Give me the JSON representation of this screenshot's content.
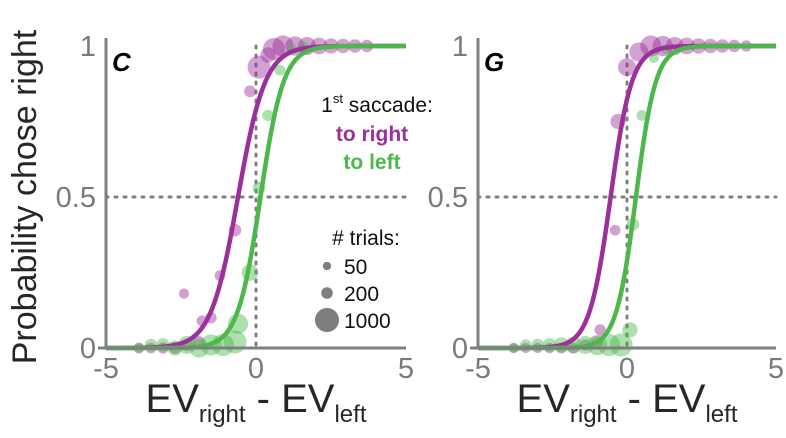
{
  "chart_data": [
    {
      "type": "scatter",
      "panel_label": "C",
      "xlim": [
        -5,
        5
      ],
      "ylim": [
        0,
        1
      ],
      "x_ticks": [
        "-5",
        "0",
        "5"
      ],
      "y_ticks": [
        "0",
        "0.5",
        "1"
      ],
      "reference_lines": {
        "x": 0,
        "y": 0.5,
        "style": "dotted"
      },
      "series": [
        {
          "name": "to right",
          "color": "#9b2f9b",
          "fit": {
            "midpoint": -0.6,
            "slope": 2.2
          },
          "points": [
            {
              "x": -3.9,
              "y": 0.0,
              "trials": 60
            },
            {
              "x": -3.5,
              "y": 0.0,
              "trials": 80
            },
            {
              "x": -3.1,
              "y": 0.0,
              "trials": 100
            },
            {
              "x": -2.7,
              "y": 0.0,
              "trials": 120
            },
            {
              "x": -2.3,
              "y": 0.01,
              "trials": 140
            },
            {
              "x": -2.4,
              "y": 0.18,
              "trials": 60
            },
            {
              "x": -1.9,
              "y": 0.02,
              "trials": 120
            },
            {
              "x": -1.8,
              "y": 0.09,
              "trials": 80
            },
            {
              "x": -1.5,
              "y": 0.1,
              "trials": 100
            },
            {
              "x": -1.2,
              "y": 0.24,
              "trials": 80
            },
            {
              "x": -0.7,
              "y": 0.39,
              "trials": 150
            },
            {
              "x": -0.2,
              "y": 0.85,
              "trials": 120
            },
            {
              "x": 0.1,
              "y": 0.93,
              "trials": 1000
            },
            {
              "x": 0.4,
              "y": 0.97,
              "trials": 300
            },
            {
              "x": 0.6,
              "y": 0.99,
              "trials": 900
            },
            {
              "x": 0.9,
              "y": 1.0,
              "trials": 800
            },
            {
              "x": 1.3,
              "y": 1.0,
              "trials": 600
            },
            {
              "x": 1.7,
              "y": 1.0,
              "trials": 500
            },
            {
              "x": 2.1,
              "y": 1.0,
              "trials": 400
            },
            {
              "x": 2.5,
              "y": 1.0,
              "trials": 300
            },
            {
              "x": 2.9,
              "y": 1.0,
              "trials": 250
            },
            {
              "x": 3.3,
              "y": 1.0,
              "trials": 200
            },
            {
              "x": 3.7,
              "y": 1.0,
              "trials": 150
            }
          ]
        },
        {
          "name": "to left",
          "color": "#4cb84c",
          "fit": {
            "midpoint": 0.15,
            "slope": 2.6
          },
          "points": [
            {
              "x": -3.9,
              "y": 0.0,
              "trials": 80
            },
            {
              "x": -3.5,
              "y": 0.01,
              "trials": 150
            },
            {
              "x": -3.1,
              "y": 0.01,
              "trials": 200
            },
            {
              "x": -2.7,
              "y": 0.0,
              "trials": 300
            },
            {
              "x": -2.3,
              "y": 0.01,
              "trials": 500
            },
            {
              "x": -1.9,
              "y": 0.0,
              "trials": 600
            },
            {
              "x": -1.5,
              "y": 0.01,
              "trials": 800
            },
            {
              "x": -1.1,
              "y": 0.01,
              "trials": 900
            },
            {
              "x": -0.7,
              "y": 0.02,
              "trials": 1000
            },
            {
              "x": -0.6,
              "y": 0.08,
              "trials": 700
            },
            {
              "x": -0.2,
              "y": 0.25,
              "trials": 400
            },
            {
              "x": 0.1,
              "y": 0.53,
              "trials": 150
            },
            {
              "x": 0.4,
              "y": 0.77,
              "trials": 100
            },
            {
              "x": 0.8,
              "y": 0.92,
              "trials": 80
            },
            {
              "x": 1.2,
              "y": 0.99,
              "trials": 60
            },
            {
              "x": 1.6,
              "y": 1.0,
              "trials": 50
            }
          ]
        }
      ]
    },
    {
      "type": "scatter",
      "panel_label": "G",
      "xlim": [
        -5,
        5
      ],
      "ylim": [
        0,
        1
      ],
      "x_ticks": [
        "-5",
        "0",
        "5"
      ],
      "y_ticks": [
        "0",
        "0.5",
        "1"
      ],
      "reference_lines": {
        "x": 0,
        "y": 0.5,
        "style": "dotted"
      },
      "series": [
        {
          "name": "to right",
          "color": "#9b2f9b",
          "fit": {
            "midpoint": -0.55,
            "slope": 2.8
          },
          "points": [
            {
              "x": -3.8,
              "y": 0.0,
              "trials": 60
            },
            {
              "x": -3.4,
              "y": 0.0,
              "trials": 60
            },
            {
              "x": -3.0,
              "y": 0.0,
              "trials": 60
            },
            {
              "x": -2.6,
              "y": 0.0,
              "trials": 70
            },
            {
              "x": -2.2,
              "y": 0.0,
              "trials": 80
            },
            {
              "x": -1.8,
              "y": 0.0,
              "trials": 90
            },
            {
              "x": -1.4,
              "y": 0.01,
              "trials": 100
            },
            {
              "x": -1.0,
              "y": 0.02,
              "trials": 120
            },
            {
              "x": -0.9,
              "y": 0.06,
              "trials": 100
            },
            {
              "x": -0.4,
              "y": 0.39,
              "trials": 80
            },
            {
              "x": -0.3,
              "y": 0.75,
              "trials": 300
            },
            {
              "x": 0.0,
              "y": 0.93,
              "trials": 500
            },
            {
              "x": 0.4,
              "y": 0.98,
              "trials": 600
            },
            {
              "x": 0.8,
              "y": 1.0,
              "trials": 800
            },
            {
              "x": 1.2,
              "y": 1.0,
              "trials": 700
            },
            {
              "x": 1.6,
              "y": 1.0,
              "trials": 500
            },
            {
              "x": 2.0,
              "y": 1.0,
              "trials": 400
            },
            {
              "x": 2.4,
              "y": 1.0,
              "trials": 300
            },
            {
              "x": 2.8,
              "y": 1.0,
              "trials": 250
            },
            {
              "x": 3.2,
              "y": 1.0,
              "trials": 200
            },
            {
              "x": 3.6,
              "y": 1.0,
              "trials": 150
            },
            {
              "x": 4.0,
              "y": 1.0,
              "trials": 100
            }
          ]
        },
        {
          "name": "to left",
          "color": "#4cb84c",
          "fit": {
            "midpoint": 0.3,
            "slope": 3.0
          },
          "points": [
            {
              "x": -3.8,
              "y": 0.0,
              "trials": 60
            },
            {
              "x": -3.4,
              "y": 0.01,
              "trials": 100
            },
            {
              "x": -3.0,
              "y": 0.01,
              "trials": 150
            },
            {
              "x": -2.6,
              "y": 0.01,
              "trials": 200
            },
            {
              "x": -2.2,
              "y": 0.01,
              "trials": 300
            },
            {
              "x": -1.8,
              "y": 0.01,
              "trials": 400
            },
            {
              "x": -1.4,
              "y": 0.01,
              "trials": 500
            },
            {
              "x": -1.0,
              "y": 0.01,
              "trials": 700
            },
            {
              "x": -0.6,
              "y": 0.01,
              "trials": 900
            },
            {
              "x": -0.2,
              "y": 0.01,
              "trials": 1000
            },
            {
              "x": 0.1,
              "y": 0.06,
              "trials": 300
            },
            {
              "x": 0.2,
              "y": 0.41,
              "trials": 150
            },
            {
              "x": 0.5,
              "y": 0.77,
              "trials": 80
            },
            {
              "x": 0.9,
              "y": 0.96,
              "trials": 60
            },
            {
              "x": 1.3,
              "y": 0.99,
              "trials": 60
            }
          ]
        }
      ]
    }
  ],
  "axes": {
    "ylabel": "Probability chose right",
    "xlabel": {
      "main1": "EV",
      "sub1": "right",
      "mid": " - EV",
      "sub2": "left"
    }
  },
  "legend": {
    "title_prefix": "1",
    "title_sup": "st",
    "title_suffix": " saccade:",
    "series": [
      "to right",
      "to left"
    ],
    "size_title": "# trials:",
    "sizes": [
      {
        "label": "50",
        "trials": 50
      },
      {
        "label": "200",
        "trials": 200
      },
      {
        "label": "1000",
        "trials": 1000
      }
    ],
    "size_color": "#7f7f7f"
  }
}
